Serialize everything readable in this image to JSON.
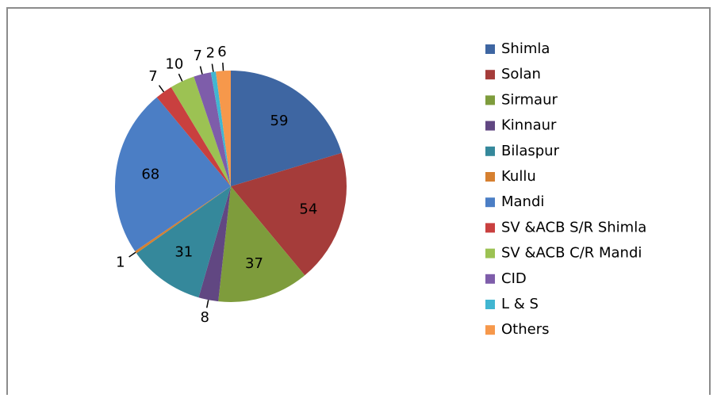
{
  "chart_data": {
    "type": "pie",
    "categories": [
      "Shimla",
      "Solan",
      "Sirmaur",
      "Kinnaur",
      "Bilaspur",
      "Kullu",
      "Mandi",
      "SV &ACB S/R Shimla",
      "SV &ACB C/R Mandi",
      "CID",
      "L & S",
      "Others"
    ],
    "values": [
      59,
      54,
      37,
      8,
      31,
      1,
      68,
      7,
      10,
      7,
      2,
      6
    ],
    "colors": [
      "#3e66a2",
      "#a53c3a",
      "#7e9c3c",
      "#614782",
      "#35889b",
      "#d68030",
      "#4b7ec5",
      "#c9403f",
      "#9cc253",
      "#7e5daa",
      "#41b6d1",
      "#f6984b"
    ],
    "legend": "right"
  }
}
